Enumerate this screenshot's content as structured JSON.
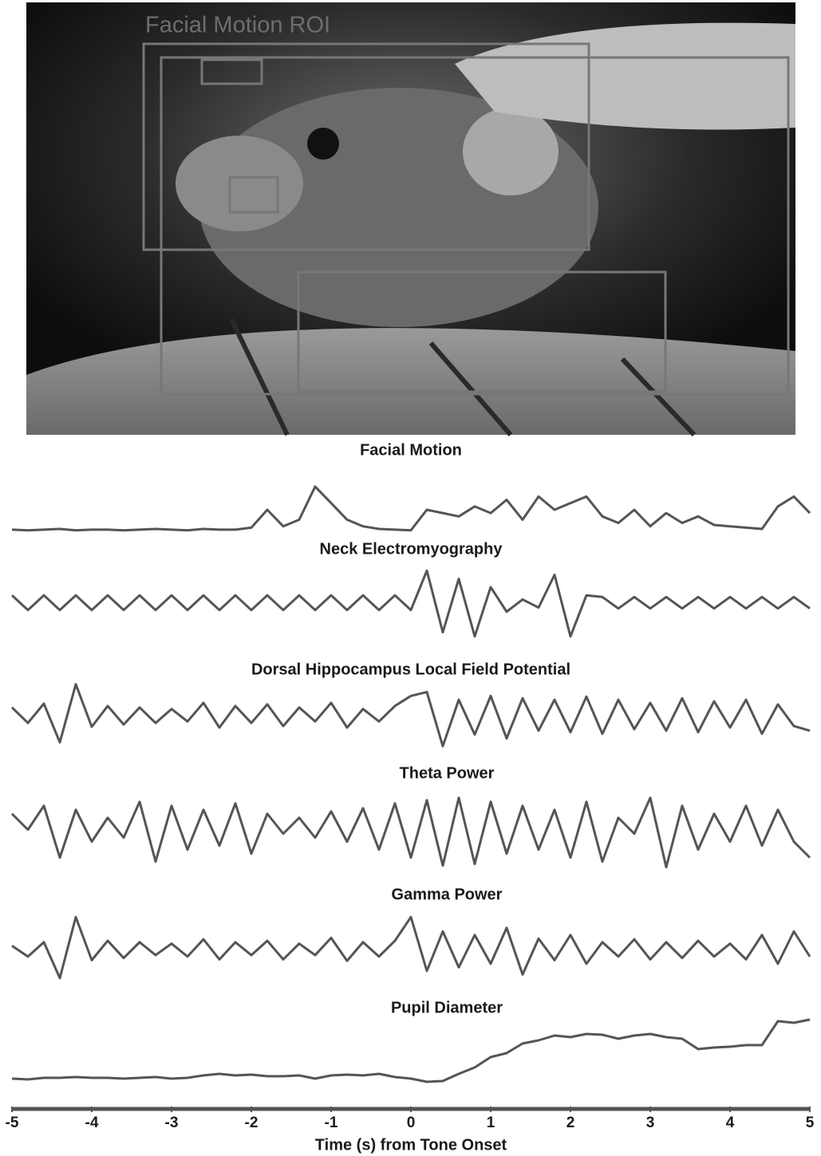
{
  "image_label": "Facial Motion ROI",
  "chart_data": [
    {
      "type": "line",
      "title": "Facial Motion",
      "color": "#555555",
      "ylim": [
        0,
        100
      ],
      "x": [
        -5,
        -4.8,
        -4.6,
        -4.4,
        -4.2,
        -4,
        -3.8,
        -3.6,
        -3.4,
        -3.2,
        -3,
        -2.8,
        -2.6,
        -2.4,
        -2.2,
        -2,
        -1.8,
        -1.6,
        -1.4,
        -1.2,
        -1,
        -0.8,
        -0.6,
        -0.4,
        -0.2,
        0,
        0.2,
        0.4,
        0.6,
        0.8,
        1,
        1.2,
        1.4,
        1.6,
        1.8,
        2,
        2.2,
        2.4,
        2.6,
        2.8,
        3,
        3.2,
        3.4,
        3.6,
        3.8,
        4,
        4.2,
        4.4,
        4.6,
        4.8,
        5
      ],
      "values": [
        5,
        4,
        5,
        6,
        4,
        5,
        5,
        4,
        5,
        6,
        5,
        4,
        6,
        5,
        5,
        8,
        35,
        10,
        20,
        70,
        45,
        20,
        10,
        6,
        5,
        4,
        35,
        30,
        25,
        40,
        30,
        50,
        20,
        55,
        35,
        45,
        55,
        25,
        15,
        35,
        10,
        30,
        15,
        25,
        12,
        10,
        8,
        6,
        40,
        55,
        30
      ]
    },
    {
      "type": "line",
      "title": "Neck Electromyography",
      "color": "#555555",
      "ylim": [
        0,
        100
      ],
      "x": [
        -5,
        -4.8,
        -4.6,
        -4.4,
        -4.2,
        -4,
        -3.8,
        -3.6,
        -3.4,
        -3.2,
        -3,
        -2.8,
        -2.6,
        -2.4,
        -2.2,
        -2,
        -1.8,
        -1.6,
        -1.4,
        -1.2,
        -1,
        -0.8,
        -0.6,
        -0.4,
        -0.2,
        0,
        0.2,
        0.4,
        0.6,
        0.8,
        1,
        1.2,
        1.4,
        1.6,
        1.8,
        2,
        2.2,
        2.4,
        2.6,
        2.8,
        3,
        3.2,
        3.4,
        3.6,
        3.8,
        4,
        4.2,
        4.4,
        4.6,
        4.8,
        5
      ],
      "values": [
        60,
        42,
        60,
        42,
        60,
        42,
        60,
        42,
        60,
        42,
        60,
        42,
        60,
        42,
        60,
        42,
        60,
        42,
        60,
        42,
        60,
        42,
        60,
        42,
        60,
        42,
        90,
        15,
        80,
        10,
        70,
        40,
        55,
        45,
        85,
        10,
        60,
        58,
        44,
        58,
        44,
        58,
        44,
        58,
        44,
        58,
        44,
        58,
        44,
        58,
        44
      ]
    },
    {
      "type": "line",
      "title": "Dorsal Hippocampus Local Field Potential",
      "color": "#555555",
      "ylim": [
        0,
        100
      ],
      "x": [
        -5,
        -4.8,
        -4.6,
        -4.4,
        -4.2,
        -4,
        -3.8,
        -3.6,
        -3.4,
        -3.2,
        -3,
        -2.8,
        -2.6,
        -2.4,
        -2.2,
        -2,
        -1.8,
        -1.6,
        -1.4,
        -1.2,
        -1,
        -0.8,
        -0.6,
        -0.4,
        -0.2,
        0,
        0.2,
        0.4,
        0.6,
        0.8,
        1,
        1.2,
        1.4,
        1.6,
        1.8,
        2,
        2.2,
        2.4,
        2.6,
        2.8,
        3,
        3.2,
        3.4,
        3.6,
        3.8,
        4,
        4.2,
        4.4,
        4.6,
        4.8,
        5
      ],
      "values": [
        60,
        40,
        65,
        15,
        90,
        35,
        62,
        38,
        60,
        40,
        58,
        42,
        66,
        34,
        62,
        40,
        64,
        36,
        60,
        42,
        66,
        34,
        58,
        42,
        62,
        75,
        80,
        10,
        70,
        25,
        75,
        20,
        72,
        30,
        70,
        28,
        74,
        26,
        70,
        32,
        66,
        30,
        72,
        28,
        68,
        34,
        70,
        26,
        64,
        36,
        30
      ]
    },
    {
      "type": "line",
      "title": "Theta Power",
      "color": "#555555",
      "ylim": [
        0,
        100
      ],
      "x": [
        -5,
        -4.8,
        -4.6,
        -4.4,
        -4.2,
        -4,
        -3.8,
        -3.6,
        -3.4,
        -3.2,
        -3,
        -2.8,
        -2.6,
        -2.4,
        -2.2,
        -2,
        -1.8,
        -1.6,
        -1.4,
        -1.2,
        -1,
        -0.8,
        -0.6,
        -0.4,
        -0.2,
        0,
        0.2,
        0.4,
        0.6,
        0.8,
        1,
        1.2,
        1.4,
        1.6,
        1.8,
        2,
        2.2,
        2.4,
        2.6,
        2.8,
        3,
        3.2,
        3.4,
        3.6,
        3.8,
        4,
        4.2,
        4.4,
        4.6,
        4.8,
        5
      ],
      "values": [
        75,
        55,
        85,
        20,
        80,
        40,
        70,
        45,
        90,
        15,
        85,
        30,
        80,
        35,
        88,
        25,
        75,
        50,
        70,
        45,
        78,
        40,
        82,
        30,
        88,
        20,
        92,
        10,
        95,
        12,
        90,
        25,
        85,
        30,
        80,
        20,
        90,
        15,
        70,
        50,
        95,
        8,
        85,
        30,
        75,
        40,
        85,
        35,
        80,
        40,
        20
      ]
    },
    {
      "type": "line",
      "title": "Gamma Power",
      "color": "#555555",
      "ylim": [
        0,
        100
      ],
      "x": [
        -5,
        -4.8,
        -4.6,
        -4.4,
        -4.2,
        -4,
        -3.8,
        -3.6,
        -3.4,
        -3.2,
        -3,
        -2.8,
        -2.6,
        -2.4,
        -2.2,
        -2,
        -1.8,
        -1.6,
        -1.4,
        -1.2,
        -1,
        -0.8,
        -0.6,
        -0.4,
        -0.2,
        0,
        0.2,
        0.4,
        0.6,
        0.8,
        1,
        1.2,
        1.4,
        1.6,
        1.8,
        2,
        2.2,
        2.4,
        2.6,
        2.8,
        3,
        3.2,
        3.4,
        3.6,
        3.8,
        4,
        4.2,
        4.4,
        4.6,
        4.8,
        5
      ],
      "values": [
        55,
        40,
        60,
        10,
        95,
        35,
        62,
        38,
        60,
        42,
        58,
        40,
        64,
        36,
        60,
        42,
        62,
        36,
        58,
        42,
        66,
        34,
        60,
        40,
        62,
        95,
        20,
        75,
        25,
        70,
        30,
        80,
        15,
        65,
        35,
        70,
        30,
        60,
        40,
        64,
        36,
        60,
        38,
        62,
        40,
        58,
        36,
        70,
        30,
        75,
        40
      ]
    },
    {
      "type": "line",
      "title": "Pupil Diameter",
      "color": "#555555",
      "ylim": [
        0,
        100
      ],
      "xlim": [
        -5,
        5
      ],
      "xticks": [
        -5,
        -4,
        -3,
        -2,
        -1,
        0,
        1,
        2,
        3,
        4,
        5
      ],
      "xlabel": "Time (s) from Tone Onset",
      "x": [
        -5,
        -4.8,
        -4.6,
        -4.4,
        -4.2,
        -4,
        -3.8,
        -3.6,
        -3.4,
        -3.2,
        -3,
        -2.8,
        -2.6,
        -2.4,
        -2.2,
        -2,
        -1.8,
        -1.6,
        -1.4,
        -1.2,
        -1,
        -0.8,
        -0.6,
        -0.4,
        -0.2,
        0,
        0.2,
        0.4,
        0.6,
        0.8,
        1,
        1.2,
        1.4,
        1.6,
        1.8,
        2,
        2.2,
        2.4,
        2.6,
        2.8,
        3,
        3.2,
        3.4,
        3.6,
        3.8,
        4,
        4.2,
        4.4,
        4.6,
        4.8,
        5
      ],
      "values": [
        18,
        17,
        19,
        19,
        20,
        19,
        19,
        18,
        19,
        20,
        18,
        19,
        22,
        24,
        22,
        23,
        21,
        21,
        22,
        18,
        22,
        23,
        22,
        24,
        20,
        18,
        14,
        15,
        24,
        32,
        45,
        50,
        62,
        66,
        72,
        70,
        74,
        73,
        68,
        72,
        74,
        70,
        68,
        55,
        57,
        58,
        60,
        60,
        90,
        88,
        92
      ]
    }
  ]
}
